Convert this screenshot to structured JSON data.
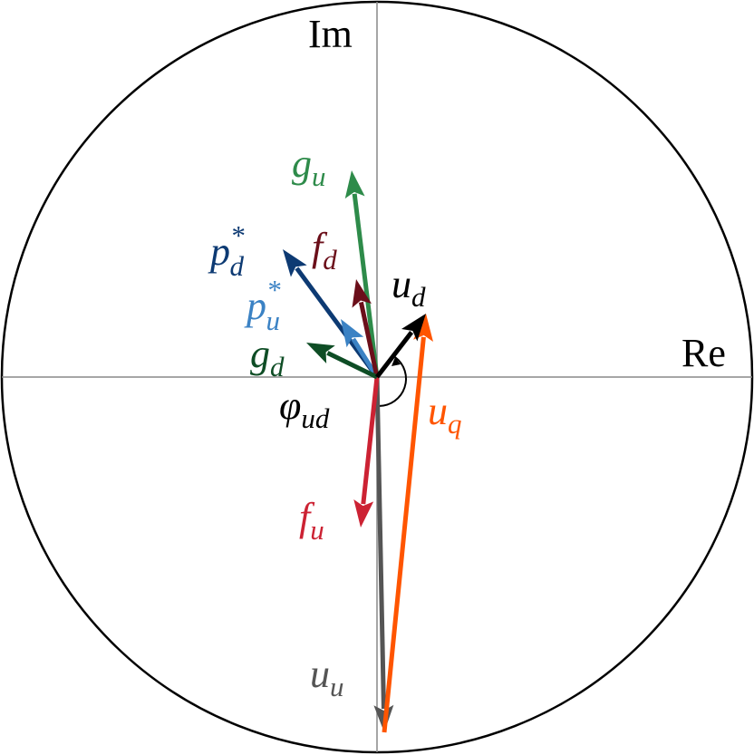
{
  "axes": {
    "imaginary": "Im",
    "real": "Re"
  },
  "labels": [
    {
      "symbol": "g",
      "subscript": "u"
    },
    {
      "symbol": "f",
      "subscript": "d"
    },
    {
      "symbol": "p",
      "superscript": "*",
      "subscript": "d"
    },
    {
      "symbol": "p",
      "superscript": "*",
      "subscript": "u"
    },
    {
      "symbol": "g",
      "subscript": "d"
    },
    {
      "symbol": "u",
      "subscript": "d"
    },
    {
      "symbol": "φ",
      "subscript": "ud"
    },
    {
      "symbol": "u",
      "subscript": "q"
    },
    {
      "symbol": "f",
      "subscript": "u"
    },
    {
      "symbol": "u",
      "subscript": "u"
    }
  ]
}
